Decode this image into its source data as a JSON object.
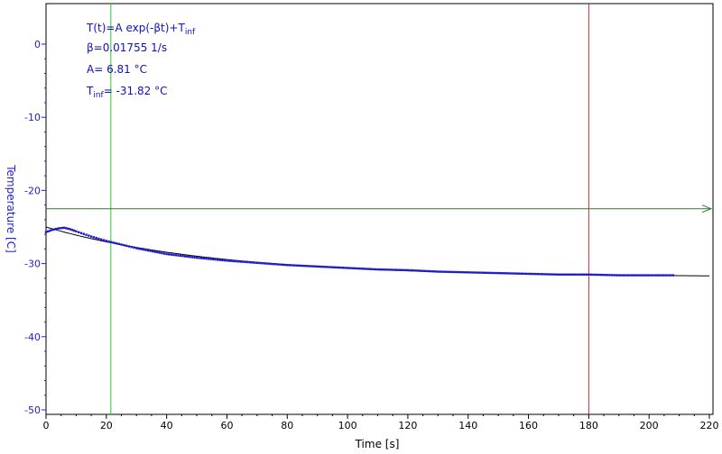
{
  "chart_data": {
    "type": "scatter",
    "title": "",
    "xlabel": "Time [s]",
    "ylabel": "Temperature [C]",
    "xlim": [
      0,
      220
    ],
    "ylim": [
      -50,
      5
    ],
    "x_ticks": [
      0,
      20,
      40,
      60,
      80,
      100,
      120,
      140,
      160,
      180,
      200,
      220
    ],
    "y_ticks": [
      0,
      -10,
      -20,
      -30,
      -40,
      -50
    ],
    "grid": false,
    "annotation": {
      "formula_prefix": "T(t)=A exp(-βt)+T",
      "formula_sub": "inf",
      "beta_text": "β=0.01755 1/s",
      "a_text": "A= 6.81 °C",
      "tinf_prefix": "T",
      "tinf_sub": "inf",
      "tinf_value": "= -31.82 °C"
    },
    "fit": {
      "A": 6.81,
      "beta": 0.01755,
      "T_inf": -31.82
    },
    "cursors": {
      "vertical_green_x": 21.5,
      "vertical_red_x": 180,
      "horizontal_green_y": -22.5
    },
    "series": [
      {
        "kind": "measured",
        "x": [
          0,
          2,
          4,
          6,
          8,
          10,
          15,
          20,
          25,
          30,
          40,
          50,
          60,
          70,
          80,
          90,
          100,
          110,
          120,
          130,
          140,
          150,
          160,
          170,
          180,
          190,
          200,
          208
        ],
        "y": [
          -25.7,
          -25.4,
          -25.2,
          -25.1,
          -25.3,
          -25.6,
          -26.3,
          -26.9,
          -27.4,
          -27.9,
          -28.7,
          -29.2,
          -29.6,
          -29.9,
          -30.2,
          -30.4,
          -30.6,
          -30.8,
          -30.9,
          -31.1,
          -31.2,
          -31.3,
          -31.4,
          -31.5,
          -31.5,
          -31.6,
          -31.6,
          -31.6
        ]
      },
      {
        "kind": "fit-line",
        "x_range": [
          0,
          220
        ]
      }
    ],
    "colors": {
      "axes": "#2020d0",
      "data": "#1a1acc",
      "fit": "#000000",
      "green_cursor": "#30c030",
      "hline": "#2a7a2a",
      "red_cursor": "#c03030"
    }
  }
}
